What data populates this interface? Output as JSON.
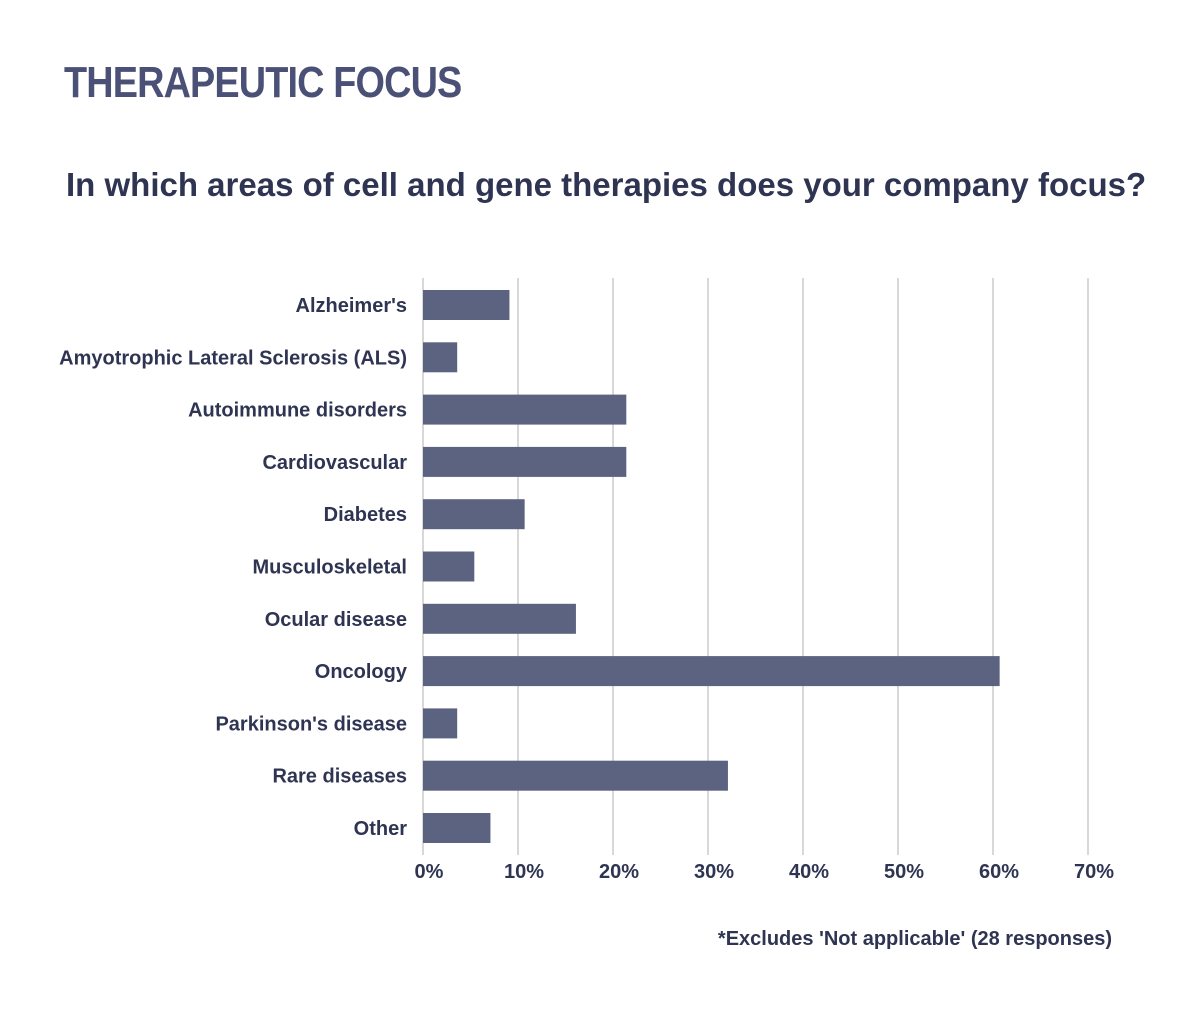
{
  "header": {
    "title": "THERAPEUTIC FOCUS",
    "question": "In which areas of cell and gene therapies does your company focus?"
  },
  "footnote": "*Excludes 'Not applicable' (28 responses)",
  "chart_data": {
    "type": "bar",
    "orientation": "horizontal",
    "categories": [
      "Alzheimer's",
      "Amyotrophic Lateral Sclerosis (ALS)",
      "Autoimmune disorders",
      "Cardiovascular",
      "Diabetes",
      "Musculoskeletal",
      "Ocular disease",
      "Oncology",
      "Parkinson's disease",
      "Rare diseases",
      "Other"
    ],
    "values": [
      9.1,
      3.6,
      21.4,
      21.4,
      10.7,
      5.4,
      16.1,
      60.7,
      3.6,
      32.1,
      7.1
    ],
    "xlim": [
      0,
      70
    ],
    "xticks": [
      "0%",
      "10%",
      "20%",
      "30%",
      "40%",
      "50%",
      "60%",
      "70%"
    ],
    "grid": "vertical",
    "bar_color": "#5c6381",
    "grid_color": "#d8d8d8",
    "text_color": "#2e3452"
  }
}
